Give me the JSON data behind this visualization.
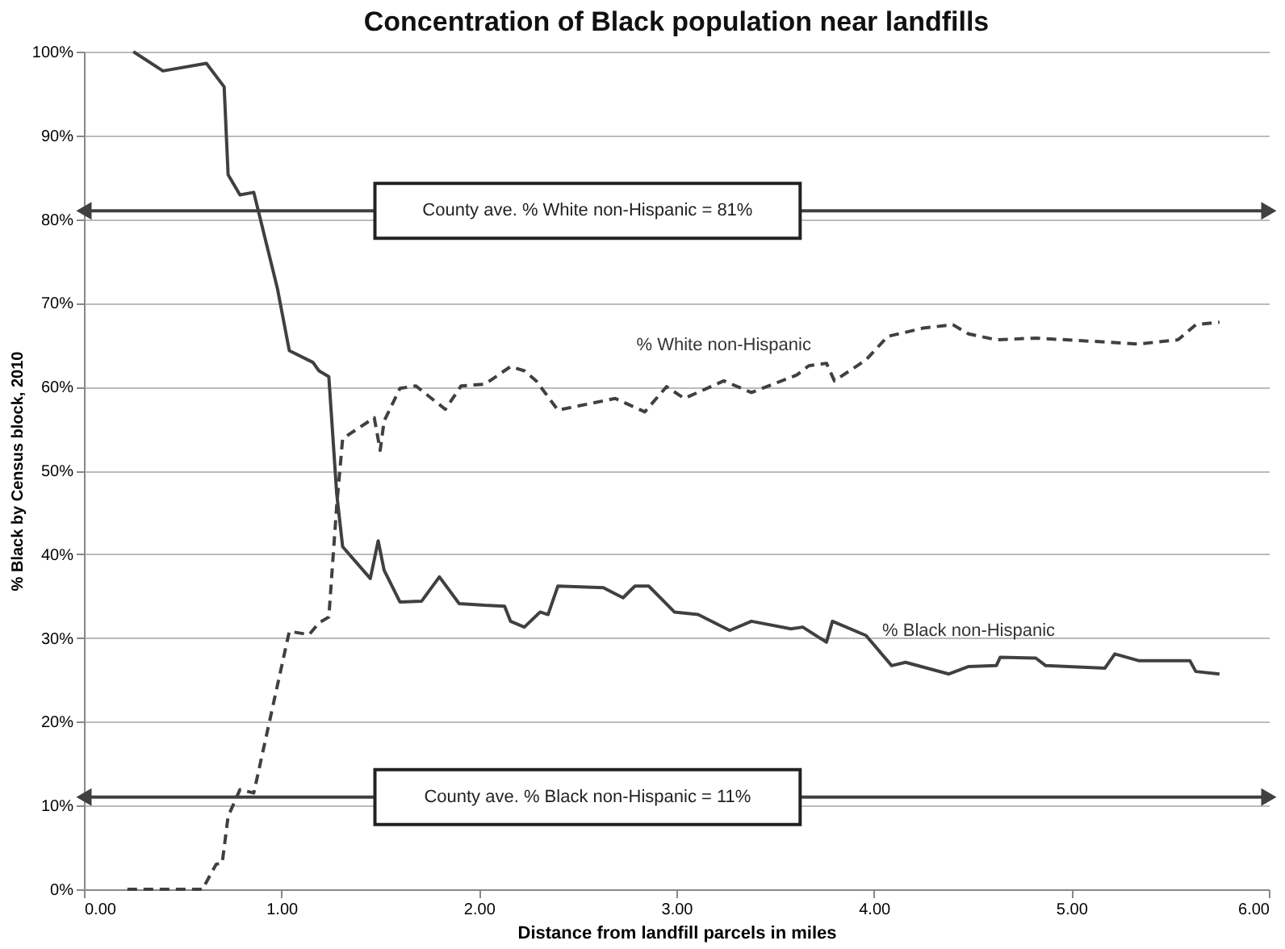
{
  "chart_data": {
    "type": "line",
    "title": "Concentration of Black population near landfills",
    "xlabel": "Distance from landfill parcels in miles",
    "ylabel": "% Black by Census block, 2010",
    "xlim": [
      0,
      6
    ],
    "xticks": [
      {
        "value": 0,
        "label": "0.00"
      },
      {
        "value": 1,
        "label": "1.00"
      },
      {
        "value": 2,
        "label": "2.00"
      },
      {
        "value": 3,
        "label": "3.00"
      },
      {
        "value": 4,
        "label": "4.00"
      },
      {
        "value": 5,
        "label": "5.00"
      },
      {
        "value": 6,
        "label": "6.00"
      }
    ],
    "ylim": [
      0,
      100
    ],
    "yticks": [
      {
        "value": 0,
        "label": "0%"
      },
      {
        "value": 10,
        "label": "10%"
      },
      {
        "value": 20,
        "label": "20%"
      },
      {
        "value": 30,
        "label": "30%"
      },
      {
        "value": 40,
        "label": "40%"
      },
      {
        "value": 50,
        "label": "50%"
      },
      {
        "value": 60,
        "label": "60%"
      },
      {
        "value": 70,
        "label": "70%"
      },
      {
        "value": 80,
        "label": "80%"
      },
      {
        "value": 90,
        "label": "90%"
      },
      {
        "value": 100,
        "label": "100%"
      }
    ],
    "grid": "y",
    "marker": "none",
    "series": [
      {
        "name": "% Black non-Hispanic",
        "color": "#404040",
        "line_style": "solid",
        "x": [
          0.25,
          0.4,
          0.62,
          0.71,
          0.73,
          0.79,
          0.86,
          0.98,
          1.04,
          1.16,
          1.19,
          1.24,
          1.28,
          1.31,
          1.45,
          1.49,
          1.52,
          1.6,
          1.71,
          1.8,
          1.9,
          2.03,
          2.13,
          2.16,
          2.23,
          2.31,
          2.35,
          2.4,
          2.63,
          2.73,
          2.79,
          2.86,
          2.99,
          3.11,
          3.27,
          3.38,
          3.58,
          3.64,
          3.76,
          3.79,
          3.96,
          4.09,
          4.16,
          4.38,
          4.48,
          4.62,
          4.64,
          4.82,
          4.87,
          5.17,
          5.22,
          5.34,
          5.6,
          5.63,
          5.75
        ],
        "values": [
          100,
          97.7,
          98.6,
          95.8,
          85.3,
          82.9,
          83.2,
          71.7,
          64.3,
          62.9,
          61.9,
          61.2,
          47.2,
          40.9,
          37.1,
          41.6,
          38.1,
          34.3,
          34.4,
          37.3,
          34.1,
          33.9,
          33.8,
          32.0,
          31.3,
          33.1,
          32.8,
          36.2,
          36.0,
          34.8,
          36.2,
          36.2,
          33.1,
          32.8,
          30.9,
          32.0,
          31.1,
          31.3,
          29.5,
          32.0,
          30.3,
          26.7,
          27.1,
          25.7,
          26.6,
          26.7,
          27.7,
          27.6,
          26.7,
          26.4,
          28.1,
          27.3,
          27.3,
          26.0,
          25.7
        ]
      },
      {
        "name": "% White non-Hispanic",
        "color": "#404040",
        "line_style": "dashed",
        "x": [
          0.22,
          0.6,
          0.67,
          0.7,
          0.73,
          0.79,
          0.86,
          1.04,
          1.14,
          1.19,
          1.24,
          1.28,
          1.31,
          1.47,
          1.5,
          1.52,
          1.6,
          1.68,
          1.83,
          1.91,
          2.03,
          2.16,
          2.23,
          2.29,
          2.4,
          2.69,
          2.84,
          2.95,
          3.04,
          3.24,
          3.38,
          3.61,
          3.67,
          3.76,
          3.8,
          3.96,
          4.07,
          4.25,
          4.4,
          4.48,
          4.62,
          4.82,
          5.2,
          5.34,
          5.54,
          5.63,
          5.75
        ],
        "values": [
          0,
          0,
          3,
          3.1,
          8.7,
          11.9,
          11.5,
          30.8,
          30.4,
          31.8,
          32.5,
          45.8,
          53.8,
          56.3,
          52.4,
          55.9,
          59.8,
          60.1,
          57.3,
          60.1,
          60.3,
          62.4,
          61.9,
          60.7,
          57.2,
          58.6,
          57.0,
          60.0,
          58.6,
          60.7,
          59.3,
          61.4,
          62.5,
          62.8,
          60.7,
          63.2,
          66.0,
          67.0,
          67.4,
          66.3,
          65.6,
          65.8,
          65.3,
          65.1,
          65.6,
          67.4,
          67.7
        ]
      }
    ],
    "ref_lines": [
      {
        "axis": "y",
        "value": 81,
        "label": "County ave. % White non-Hispanic = 81%",
        "color": "#404040",
        "line_style": "solid"
      },
      {
        "axis": "y",
        "value": 11,
        "label": "County ave. % Black non-Hispanic = 11%",
        "color": "#404040",
        "line_style": "solid"
      }
    ]
  }
}
